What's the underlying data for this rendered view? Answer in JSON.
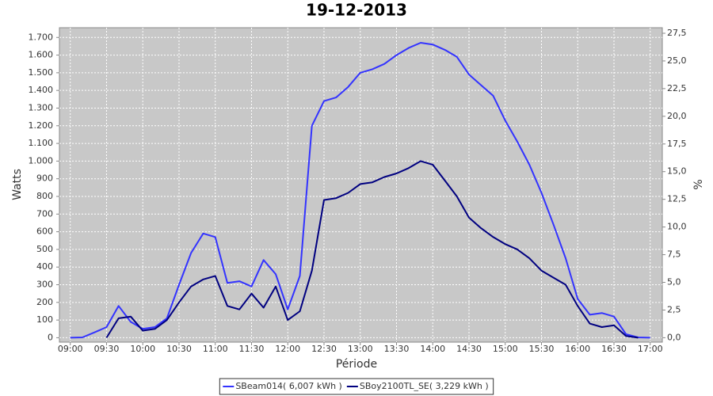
{
  "chart_data": {
    "type": "line",
    "title": "19-12-2013",
    "x_label": "Période",
    "y_label": "Watts",
    "y2_label": "%",
    "x": [
      "09:00",
      "09:10",
      "09:20",
      "09:30",
      "09:40",
      "09:50",
      "10:00",
      "10:10",
      "10:20",
      "10:30",
      "10:40",
      "10:50",
      "11:00",
      "11:10",
      "11:20",
      "11:30",
      "11:40",
      "11:50",
      "12:00",
      "12:10",
      "12:20",
      "12:30",
      "12:40",
      "12:50",
      "13:00",
      "13:10",
      "13:20",
      "13:30",
      "13:40",
      "13:50",
      "14:00",
      "14:10",
      "14:20",
      "14:30",
      "14:40",
      "14:50",
      "15:00",
      "15:10",
      "15:20",
      "15:30",
      "15:40",
      "15:50",
      "16:00",
      "16:10",
      "16:20",
      "16:30",
      "16:40",
      "16:50",
      "17:00"
    ],
    "series": [
      {
        "name": "SBeam014( 6,007 kWh )",
        "color": "#3333ff",
        "values": [
          0,
          2,
          30,
          60,
          180,
          90,
          50,
          60,
          110,
          300,
          480,
          590,
          570,
          310,
          320,
          290,
          440,
          360,
          160,
          350,
          1200,
          1340,
          1360,
          1420,
          1500,
          1520,
          1550,
          1600,
          1640,
          1670,
          1660,
          1630,
          1590,
          1490,
          1430,
          1370,
          1230,
          1110,
          980,
          820,
          640,
          450,
          220,
          130,
          140,
          120,
          20,
          2,
          0
        ]
      },
      {
        "name": "SBoy2100TL_SE( 3,229 kWh )",
        "color": "#000080",
        "values": [
          null,
          null,
          null,
          0,
          110,
          120,
          40,
          50,
          100,
          200,
          290,
          330,
          350,
          180,
          160,
          250,
          170,
          290,
          100,
          150,
          380,
          780,
          790,
          820,
          870,
          880,
          910,
          930,
          960,
          1000,
          980,
          890,
          800,
          680,
          620,
          570,
          530,
          500,
          450,
          380,
          340,
          300,
          180,
          80,
          60,
          70,
          10,
          0,
          null
        ]
      }
    ],
    "xlim": [
      "08:51",
      "17:10"
    ],
    "xticks": [
      "09:00",
      "09:30",
      "10:00",
      "10:30",
      "11:00",
      "11:30",
      "12:00",
      "12:30",
      "13:00",
      "13:30",
      "14:00",
      "14:30",
      "15:00",
      "15:30",
      "16:00",
      "16:30",
      "17:00"
    ],
    "ylim": [
      -25,
      1755
    ],
    "yticks": [
      0,
      100,
      200,
      300,
      400,
      500,
      600,
      700,
      800,
      900,
      {
        "value": 1000,
        "label": "1.000"
      },
      {
        "value": 1100,
        "label": "1.100"
      },
      {
        "value": 1200,
        "label": "1.200"
      },
      {
        "value": 1300,
        "label": "1.300"
      },
      {
        "value": 1400,
        "label": "1.400"
      },
      {
        "value": 1500,
        "label": "1.500"
      },
      {
        "value": 1600,
        "label": "1.600"
      },
      {
        "value": 1700,
        "label": "1.700"
      }
    ],
    "y2lim": [
      -0.4,
      28
    ],
    "y2ticks": [
      {
        "value": 0,
        "label": "0,0"
      },
      {
        "value": 2.5,
        "label": "2,5"
      },
      {
        "value": 5,
        "label": "5,0"
      },
      {
        "value": 7.5,
        "label": "7,5"
      },
      {
        "value": 10,
        "label": "10,0"
      },
      {
        "value": 12.5,
        "label": "12,5"
      },
      {
        "value": 15,
        "label": "15,0"
      },
      {
        "value": 17.5,
        "label": "17,5"
      },
      {
        "value": 20,
        "label": "20,0"
      },
      {
        "value": 22.5,
        "label": "22,5"
      },
      {
        "value": 25,
        "label": "25,0"
      },
      {
        "value": 27.5,
        "label": "27,5"
      }
    ],
    "grid": true,
    "legend": "bottom"
  }
}
